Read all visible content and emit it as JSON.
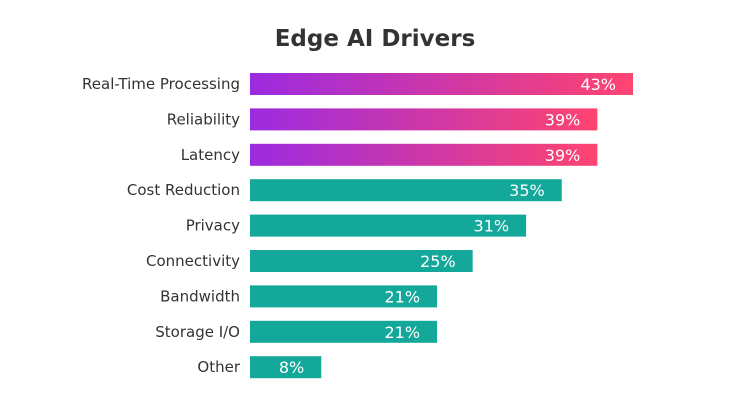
{
  "chart_data": {
    "type": "bar",
    "orientation": "horizontal",
    "title": "Edge AI Drivers",
    "xlabel": "",
    "ylabel": "",
    "categories": [
      "Real-Time Processing",
      "Reliability",
      "Latency",
      "Cost Reduction",
      "Privacy",
      "Connectivity",
      "Bandwidth",
      "Storage I/O",
      "Other"
    ],
    "values": [
      43,
      39,
      39,
      35,
      31,
      25,
      21,
      21,
      8
    ],
    "value_labels": [
      "43%",
      "39%",
      "39%",
      "35%",
      "31%",
      "25%",
      "21%",
      "21%",
      "8%"
    ],
    "xlim": [
      0,
      43
    ],
    "grid": false,
    "colors": {
      "highlight_gradient_start": "#9b2be0",
      "highlight_gradient_end": "#ff4470",
      "default_bar": "#14a89a",
      "highlighted_count": 3
    }
  }
}
